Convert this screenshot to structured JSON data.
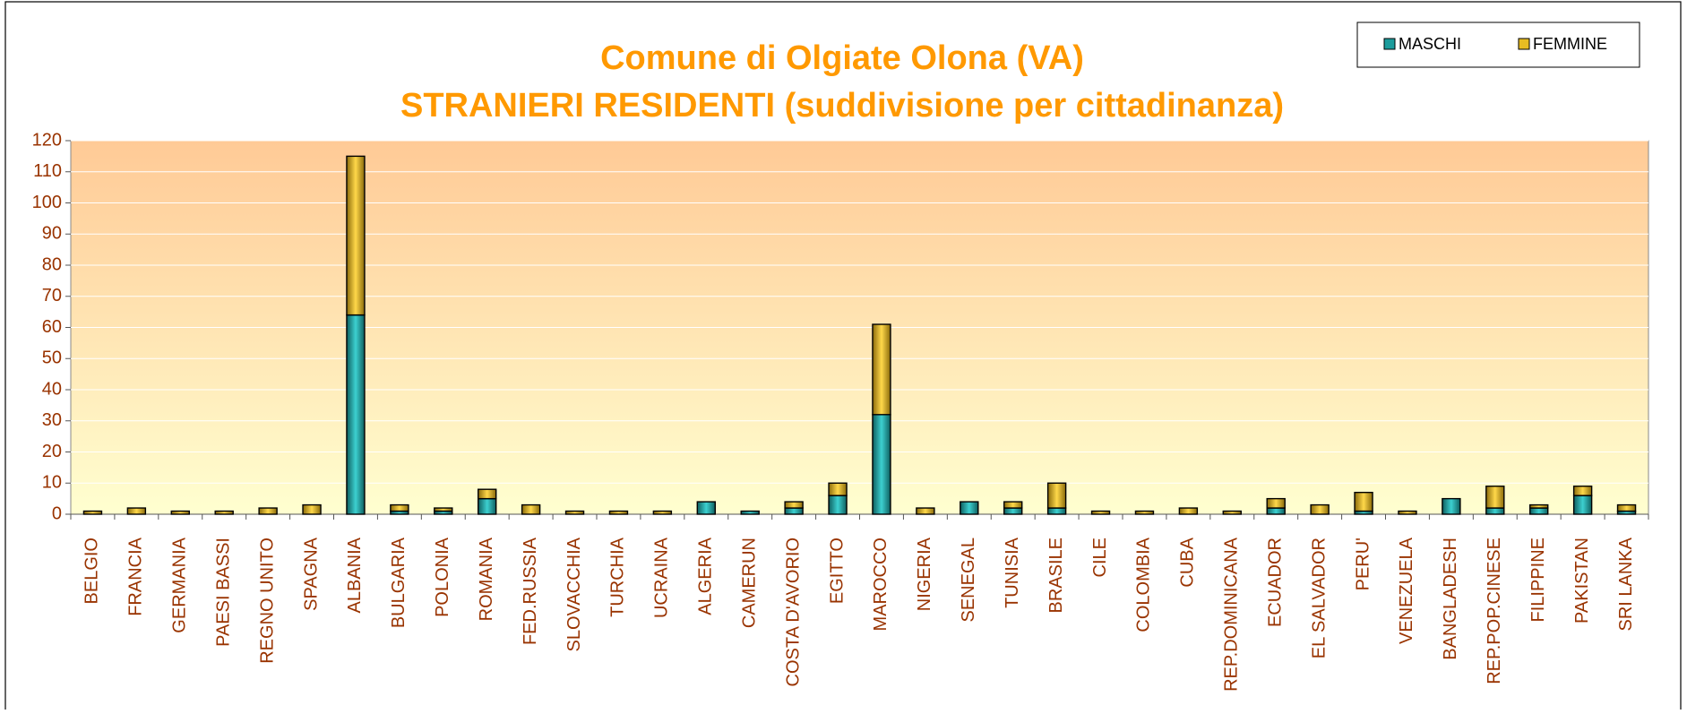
{
  "chart_data": {
    "type": "stacked_bar",
    "title": "Comune di Olgiate Olona (VA)",
    "subtitle": "STRANIERI RESIDENTI (suddivisione per cittadinanza)",
    "categories": [
      "BELGIO",
      "FRANCIA",
      "GERMANIA",
      "PAESI BASSI",
      "REGNO UNITO",
      "SPAGNA",
      "ALBANIA",
      "BULGARIA",
      "POLONIA",
      "ROMANIA",
      "FED.RUSSIA",
      "SLOVACCHIA",
      "TURCHIA",
      "UCRAINA",
      "ALGERIA",
      "CAMERUN",
      "COSTA D'AVORIO",
      "EGITTO",
      "MAROCCO",
      "NIGERIA",
      "SENEGAL",
      "TUNISIA",
      "BRASILE",
      "CILE",
      "COLOMBIA",
      "CUBA",
      "REP.DOMINICANA",
      "ECUADOR",
      "EL SALVADOR",
      "PERU'",
      "VENEZUELA",
      "BANGLADESH",
      "REP.POP.CINESE",
      "FILIPPINE",
      "PAKISTAN",
      "SRI LANKA"
    ],
    "series": [
      {
        "name": "MASCHI",
        "color": "#1c9c9c",
        "values": [
          0,
          0,
          0,
          0,
          0,
          0,
          64,
          1,
          1,
          5,
          0,
          0,
          0,
          0,
          4,
          1,
          2,
          6,
          32,
          0,
          4,
          2,
          2,
          0,
          0,
          0,
          0,
          2,
          0,
          1,
          0,
          5,
          2,
          2,
          6,
          1
        ]
      },
      {
        "name": "FEMMINE",
        "color": "#e8bc22",
        "values": [
          1,
          2,
          1,
          1,
          2,
          3,
          51,
          2,
          1,
          3,
          3,
          1,
          1,
          1,
          0,
          0,
          2,
          4,
          29,
          2,
          0,
          2,
          8,
          1,
          1,
          2,
          1,
          3,
          3,
          6,
          1,
          0,
          7,
          1,
          3,
          2
        ]
      }
    ],
    "ylim": [
      0,
      120
    ],
    "yticks": [
      0,
      10,
      20,
      30,
      40,
      50,
      60,
      70,
      80,
      90,
      100,
      110,
      120
    ],
    "grid": true,
    "legend": "top-right"
  }
}
